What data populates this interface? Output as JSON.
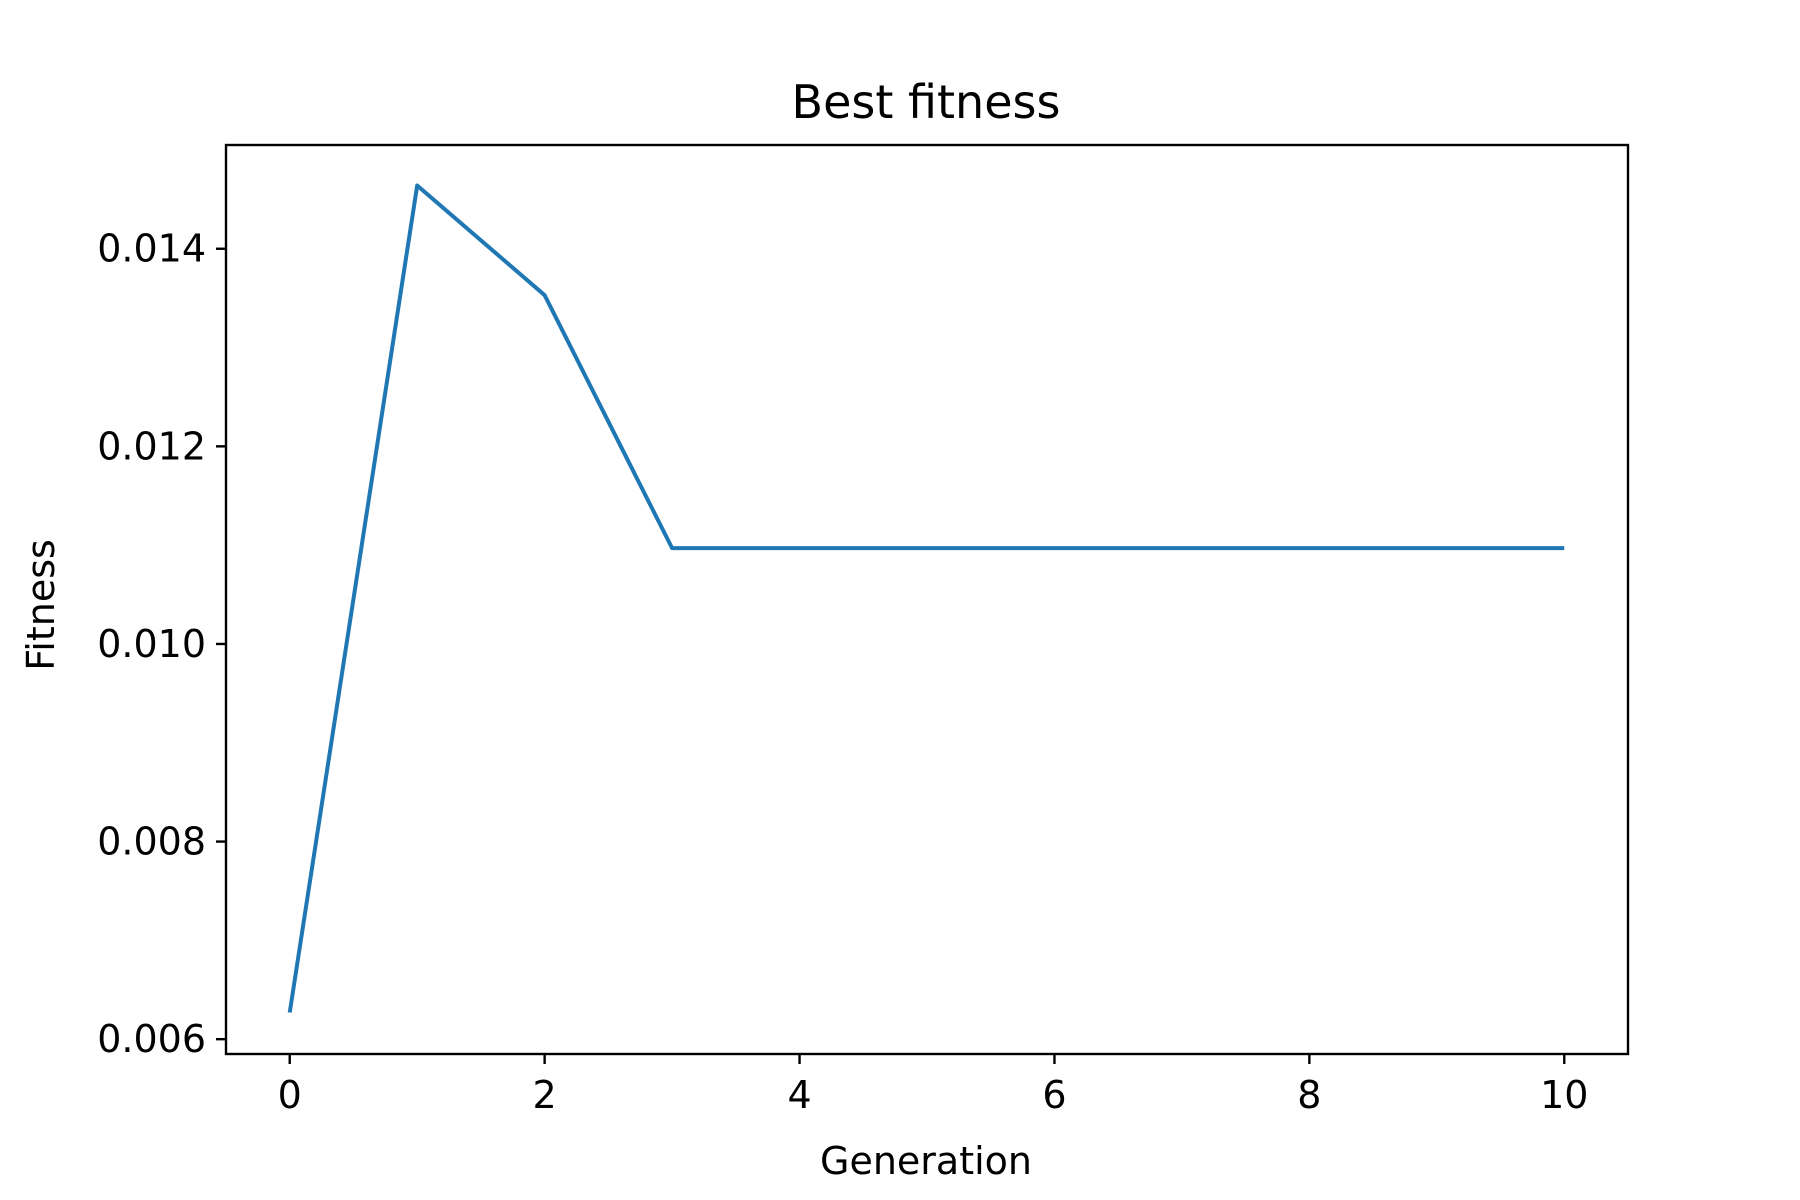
{
  "chart_data": {
    "type": "line",
    "title": "Best fitness",
    "xlabel": "Generation",
    "ylabel": "Fitness",
    "xlim": [
      -0.5,
      10.5
    ],
    "ylim": [
      0.00585,
      0.01505
    ],
    "xticks": [
      0,
      2,
      4,
      6,
      8,
      10
    ],
    "xtick_labels": [
      "0",
      "2",
      "4",
      "6",
      "8",
      "10"
    ],
    "yticks": [
      0.006,
      0.008,
      0.01,
      0.012,
      0.014
    ],
    "ytick_labels": [
      "0.006",
      "0.008",
      "0.010",
      "0.012",
      "0.014"
    ],
    "grid": false,
    "series": [
      {
        "name": "Best fitness",
        "color": "#1f77b4",
        "x": [
          0,
          1,
          2,
          3,
          4,
          5,
          6,
          7,
          8,
          9,
          10
        ],
        "y": [
          0.00627,
          0.01464,
          0.01353,
          0.01097,
          0.01097,
          0.01097,
          0.01097,
          0.01097,
          0.01097,
          0.01097,
          0.01097
        ]
      }
    ]
  }
}
